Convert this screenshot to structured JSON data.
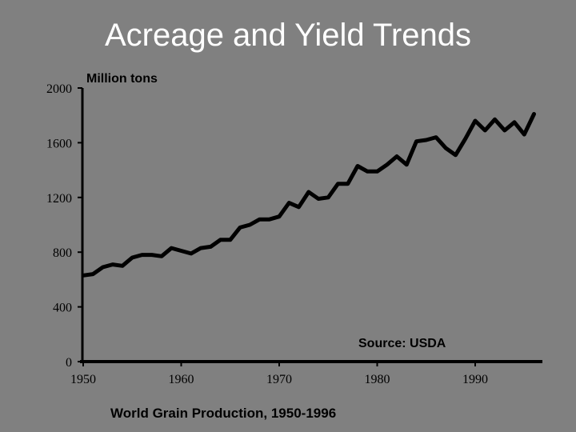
{
  "slide": {
    "title": "Acreage and Yield Trends"
  },
  "chart_data": {
    "type": "line",
    "title": "World Grain Production, 1950-1996",
    "ylabel": "Million tons",
    "xlabel": "",
    "source": "Source: USDA",
    "xlim": [
      1950,
      1996
    ],
    "ylim": [
      0,
      2000
    ],
    "x_ticks": [
      1950,
      1960,
      1970,
      1980,
      1990
    ],
    "y_ticks": [
      0,
      400,
      800,
      1200,
      1600,
      2000
    ],
    "series": [
      {
        "name": "World Grain Production",
        "x": [
          1950,
          1951,
          1952,
          1953,
          1954,
          1955,
          1956,
          1957,
          1958,
          1959,
          1960,
          1961,
          1962,
          1963,
          1964,
          1965,
          1966,
          1967,
          1968,
          1969,
          1970,
          1971,
          1972,
          1973,
          1974,
          1975,
          1976,
          1977,
          1978,
          1979,
          1980,
          1981,
          1982,
          1983,
          1984,
          1985,
          1986,
          1987,
          1988,
          1989,
          1990,
          1991,
          1992,
          1993,
          1994,
          1995,
          1996
        ],
        "values": [
          630,
          640,
          690,
          710,
          700,
          760,
          780,
          780,
          770,
          830,
          810,
          790,
          830,
          840,
          890,
          890,
          980,
          1000,
          1040,
          1040,
          1060,
          1160,
          1130,
          1240,
          1190,
          1200,
          1300,
          1300,
          1430,
          1390,
          1390,
          1440,
          1500,
          1440,
          1610,
          1620,
          1640,
          1560,
          1510,
          1630,
          1760,
          1690,
          1770,
          1690,
          1750,
          1660,
          1810
        ]
      }
    ]
  }
}
